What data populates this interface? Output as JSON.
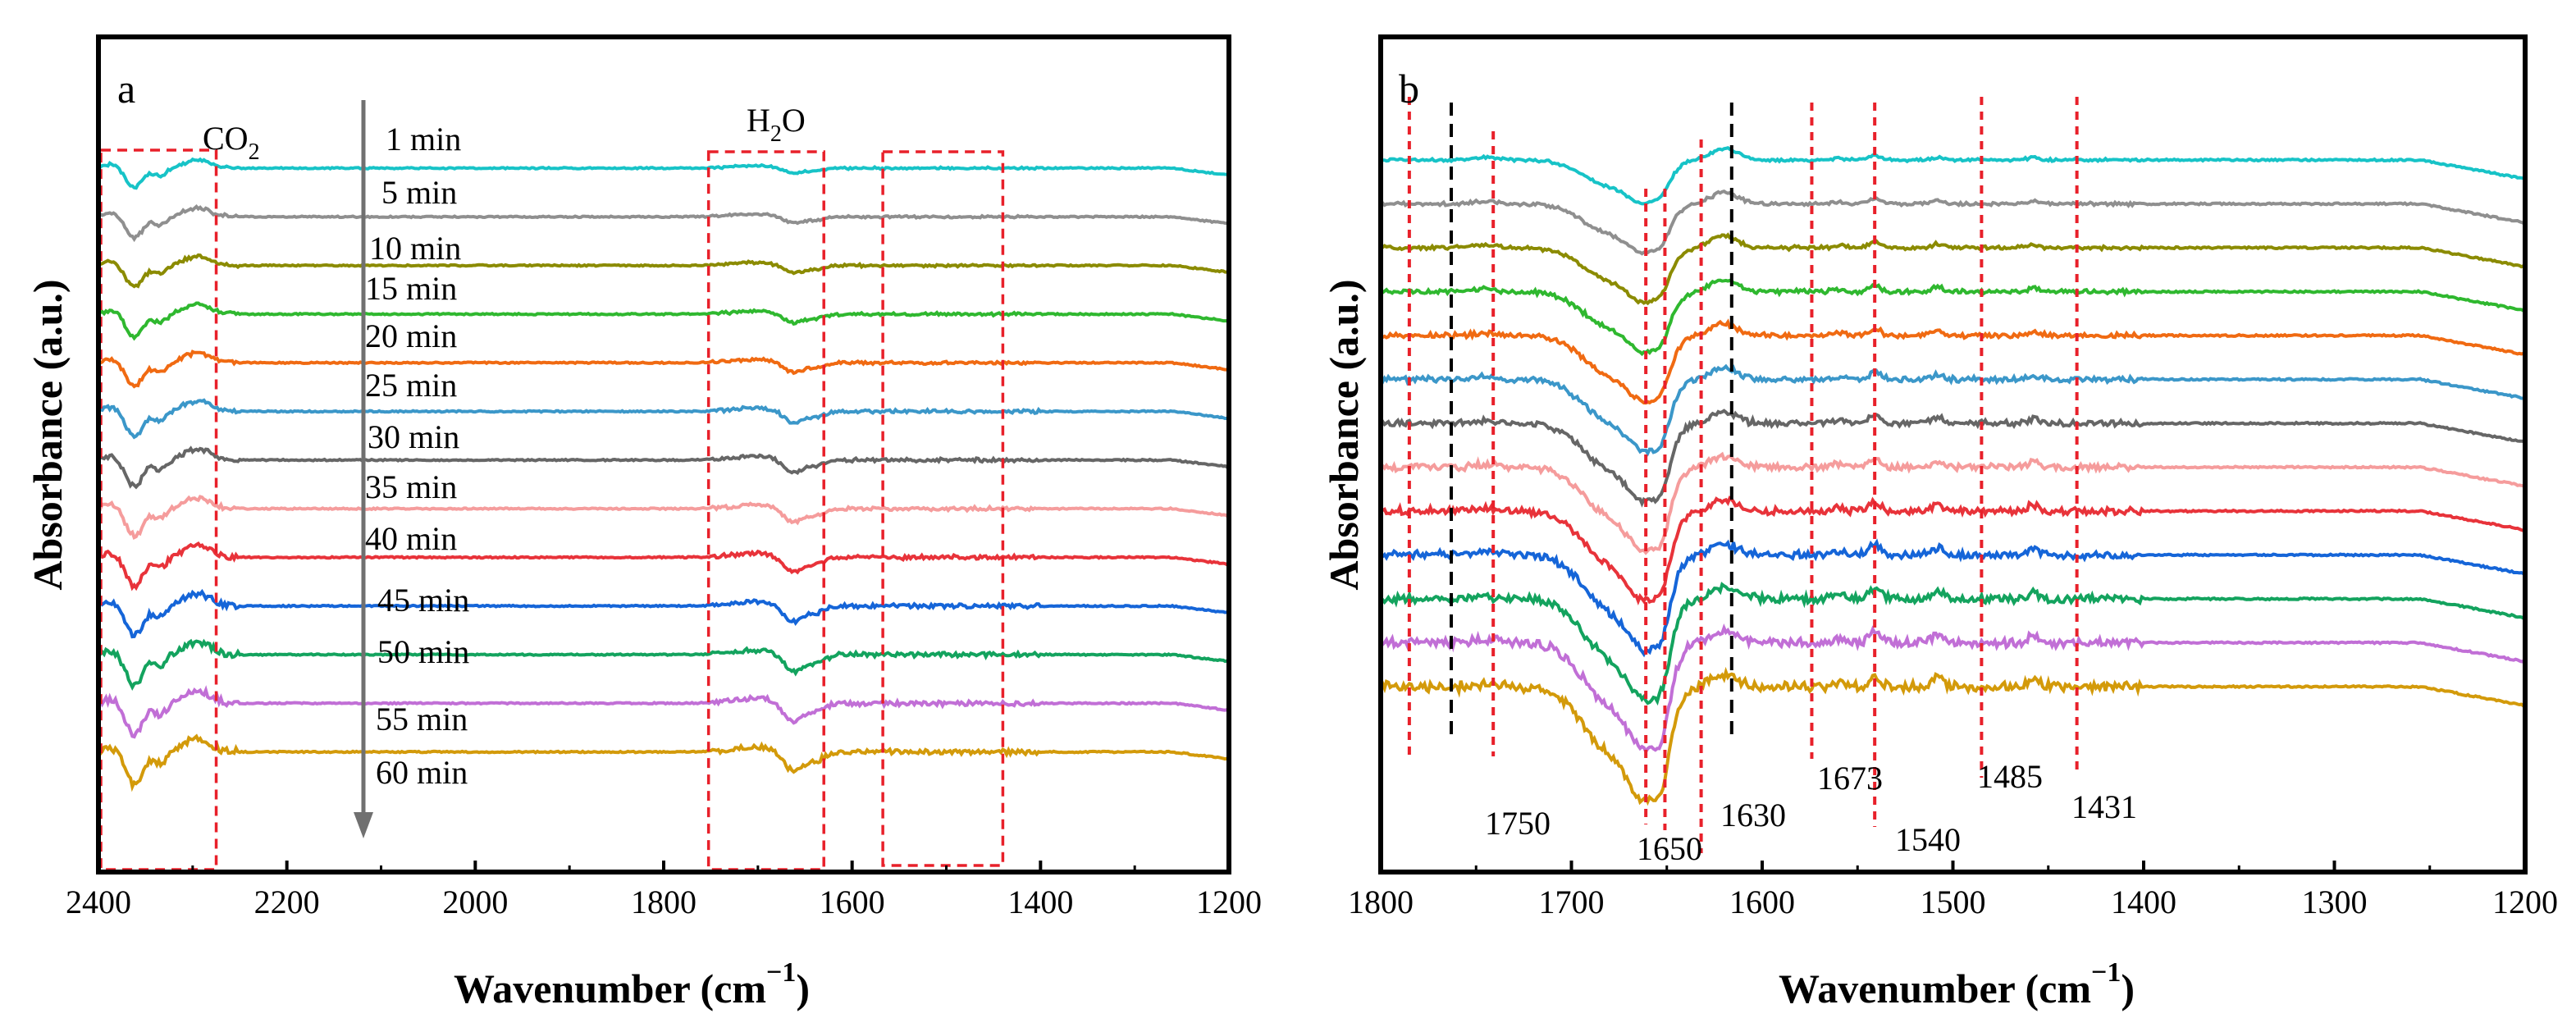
{
  "chart_data": [
    {
      "type": "line",
      "panel_label": "a",
      "xlabel": "Wavenumber (cm",
      "xlabel_sup": "−1",
      "xlabel_close": ")",
      "ylabel": "Absorbance (a.u.)",
      "xlim": [
        2400,
        1200
      ],
      "xticks": [
        "2400",
        "2200",
        "2000",
        "1800",
        "1600",
        "1400",
        "1200"
      ],
      "time_labels": [
        "1 min",
        "5 min",
        "10 min",
        "15 min",
        "20 min",
        "25 min",
        "30 min",
        "35 min",
        "40 min",
        "45 min",
        "50 min",
        "55 min",
        "60 min"
      ],
      "annotations": {
        "co2": "CO",
        "co2_sub": "2",
        "h2o_a": "H",
        "h2o_sub": "2",
        "h2o_b": "O"
      },
      "highlight_boxes_cm1": [
        [
          2400,
          2275
        ],
        [
          1755,
          1630
        ],
        [
          1570,
          1440
        ]
      ],
      "series_colors": [
        "#17c3c7",
        "#8f8f8f",
        "#8b8b00",
        "#2fb82f",
        "#f06a12",
        "#3b97c9",
        "#666666",
        "#f59c9c",
        "#e8333a",
        "#1565d8",
        "#13a35e",
        "#c16fd6",
        "#d39a0a"
      ]
    },
    {
      "type": "line",
      "panel_label": "b",
      "xlabel": "Wavenumber (cm",
      "xlabel_sup": "−1",
      "xlabel_close": ")",
      "ylabel": "Absorbance (a.u.)",
      "xlim": [
        1800,
        1200
      ],
      "xticks": [
        "1800",
        "1700",
        "1600",
        "1500",
        "1400",
        "1300",
        "1200"
      ],
      "peak_labels": [
        {
          "text": "1750",
          "wavenumber": 1750
        },
        {
          "text": "1650",
          "wavenumber": 1650
        },
        {
          "text": "1630",
          "wavenumber": 1630
        },
        {
          "text": "1673",
          "wavenumber": 1673
        },
        {
          "text": "1540",
          "wavenumber": 1540
        },
        {
          "text": "1485",
          "wavenumber": 1485
        },
        {
          "text": "1431",
          "wavenumber": 1431
        }
      ],
      "red_marker_lines_cm1": [
        1785,
        1741,
        1661,
        1651,
        1632,
        1574,
        1541,
        1485,
        1435
      ],
      "black_marker_lines_cm1": [
        1763,
        1616
      ],
      "series_colors": [
        "#17c3c7",
        "#8f8f8f",
        "#8b8b00",
        "#2fb82f",
        "#f06a12",
        "#3b97c9",
        "#666666",
        "#f59c9c",
        "#e8333a",
        "#1565d8",
        "#13a35e",
        "#c16fd6",
        "#d39a0a"
      ]
    }
  ]
}
